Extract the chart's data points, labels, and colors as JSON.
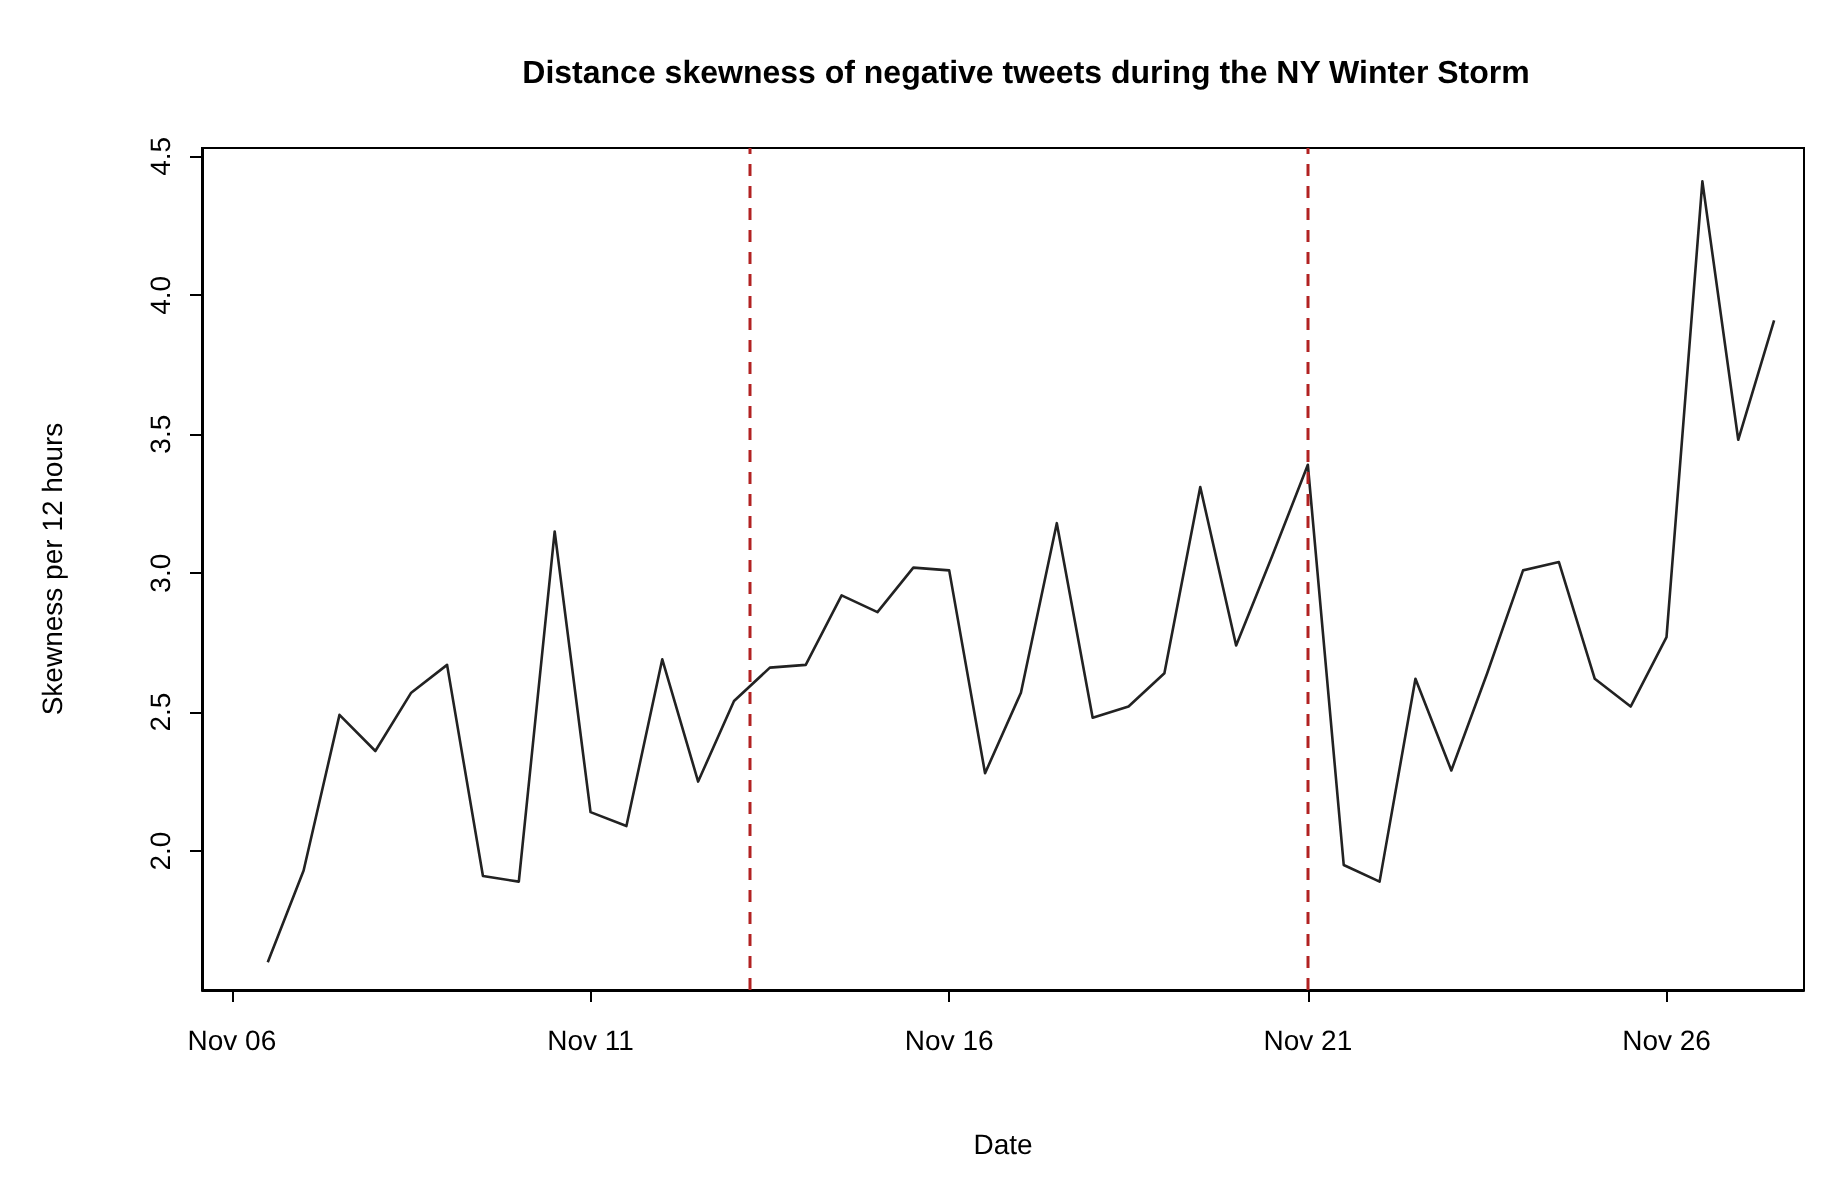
{
  "chart_data": {
    "type": "line",
    "title": "Distance skewness of negative tweets during the NY Winter Storm",
    "xlabel": "Date",
    "ylabel": "Skewness per 12 hours",
    "x": [
      "--11-06T12:00",
      "--11-07T00:00",
      "--11-07T12:00",
      "--11-08T00:00",
      "--11-08T12:00",
      "--11-09T00:00",
      "--11-09T12:00",
      "--11-10T00:00",
      "--11-10T12:00",
      "--11-11T00:00",
      "--11-11T12:00",
      "--11-12T00:00",
      "--11-12T12:00",
      "--11-13T00:00",
      "--11-13T12:00",
      "--11-14T00:00",
      "--11-14T12:00",
      "--11-15T00:00",
      "--11-15T12:00",
      "--11-16T00:00",
      "--11-16T12:00",
      "--11-17T00:00",
      "--11-17T12:00",
      "--11-18T00:00",
      "--11-18T12:00",
      "--11-19T00:00",
      "--11-19T12:00",
      "--11-20T00:00",
      "--11-20T12:00",
      "--11-21T00:00",
      "--11-21T12:00",
      "--11-22T00:00",
      "--11-22T12:00",
      "--11-23T00:00",
      "--11-23T12:00",
      "--11-24T00:00",
      "--11-24T12:00",
      "--11-25T00:00",
      "--11-25T12:00",
      "--11-26T00:00",
      "--11-26T12:00",
      "--11-27T00:00",
      "--11-27T12:00"
    ],
    "series": [
      {
        "color": "#222222",
        "values": [
          1.6,
          1.93,
          2.49,
          2.36,
          2.57,
          2.67,
          1.91,
          1.89,
          3.15,
          2.14,
          2.09,
          2.69,
          2.25,
          2.54,
          2.66,
          2.67,
          2.92,
          2.86,
          3.02,
          3.01,
          2.28,
          2.57,
          3.18,
          2.48,
          2.52,
          2.64,
          3.31,
          2.74,
          3.06,
          3.39,
          1.95,
          1.89,
          2.62,
          2.29,
          2.64,
          3.01,
          3.04,
          2.62,
          2.52,
          2.77,
          4.41,
          3.48,
          3.91
        ]
      }
    ],
    "xlim": [
      "--11-05T14:00",
      "--11-27T22:00"
    ],
    "xticks": [
      {
        "value": "--11-06",
        "label": "Nov 06"
      },
      {
        "value": "--11-11",
        "label": "Nov 11"
      },
      {
        "value": "--11-16",
        "label": "Nov 16"
      },
      {
        "value": "--11-21",
        "label": "Nov 21"
      },
      {
        "value": "--11-26",
        "label": "Nov 26"
      }
    ],
    "ylim": [
      1.5,
      4.53
    ],
    "yticks": [
      {
        "value": 2,
        "label": "2.0"
      },
      {
        "value": 2.5,
        "label": "2.5"
      },
      {
        "value": 3,
        "label": "3.0"
      },
      {
        "value": 3.5,
        "label": "3.5"
      },
      {
        "value": 4,
        "label": "4.0"
      },
      {
        "value": 4.5,
        "label": "4.5"
      }
    ],
    "ref_lines": [
      {
        "axis": "x",
        "value": "--11-13T05:00",
        "color": "#b22222",
        "line_style": "dashed"
      },
      {
        "axis": "x",
        "value": "--11-21",
        "color": "#b22222",
        "line_style": "dashed"
      }
    ],
    "grid": false,
    "marker": "none",
    "line_style": "solid"
  }
}
